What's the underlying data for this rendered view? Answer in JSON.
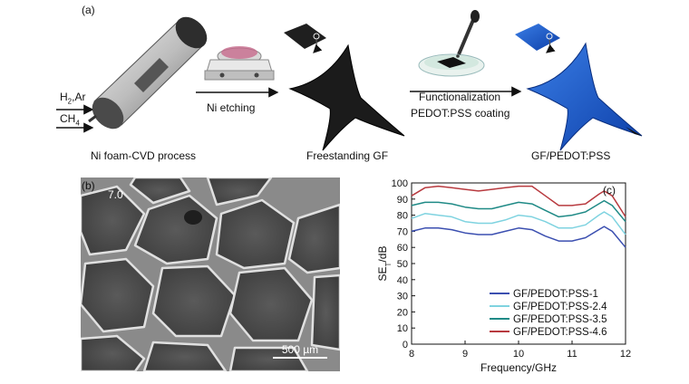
{
  "panel_a": {
    "label": "(a)",
    "gas1_prefix": "H",
    "gas1_sub": "2",
    "gas1_suffix": ",Ar",
    "gas2_prefix": "CH",
    "gas2_sub": "4",
    "step1_caption": "Ni foam-CVD process",
    "arrow1_label": "Ni etching",
    "step2_caption": "Freestanding GF",
    "arrow2_line1": "Functionalization",
    "arrow2_line2": "PEDOT:PSS coating",
    "step3_caption": "GF/PEDOT:PSS"
  },
  "panel_b": {
    "label": "(b)",
    "tag": "7.0",
    "scale_label": "500 µm"
  },
  "chart_data": {
    "type": "line",
    "panel_label": "(c)",
    "xlabel": "Frequency/GHz",
    "ylabel_prefix": "SE",
    "ylabel_sub": "T",
    "ylabel_suffix": "/dB",
    "xlim": [
      8,
      12
    ],
    "ylim": [
      0,
      100
    ],
    "xticks": [
      "8",
      "9",
      "10",
      "11",
      "12"
    ],
    "yticks": [
      "0",
      "10",
      "20",
      "30",
      "40",
      "50",
      "60",
      "70",
      "80",
      "90",
      "100"
    ],
    "grid": false,
    "legend_position": "bottom-right",
    "x": [
      8.0,
      8.25,
      8.5,
      8.75,
      9.0,
      9.25,
      9.5,
      9.75,
      10.0,
      10.25,
      10.5,
      10.75,
      11.0,
      11.25,
      11.5,
      11.6,
      11.75,
      12.0
    ],
    "series": [
      {
        "name": "GF/PEDOT:PSS-1",
        "color": "#3b4fb0",
        "values": [
          70,
          72,
          72,
          71,
          69,
          68,
          68,
          70,
          72,
          71,
          67,
          64,
          64,
          66,
          71,
          73,
          70,
          60
        ]
      },
      {
        "name": "GF/PEDOT:PSS-2.4",
        "color": "#7fd3e0",
        "values": [
          78,
          81,
          80,
          79,
          76,
          75,
          75,
          77,
          80,
          79,
          76,
          72,
          72,
          74,
          80,
          82,
          79,
          68
        ]
      },
      {
        "name": "GF/PEDOT:PSS-3.5",
        "color": "#1f8a86",
        "values": [
          86,
          88,
          88,
          87,
          85,
          84,
          84,
          86,
          88,
          87,
          83,
          79,
          80,
          82,
          87,
          89,
          86,
          76
        ]
      },
      {
        "name": "GF/PEDOT:PSS-4.6",
        "color": "#b83a3f",
        "values": [
          92,
          97,
          98,
          97,
          96,
          95,
          96,
          97,
          98,
          98,
          92,
          86,
          86,
          87,
          93,
          95,
          92,
          79
        ]
      }
    ]
  }
}
